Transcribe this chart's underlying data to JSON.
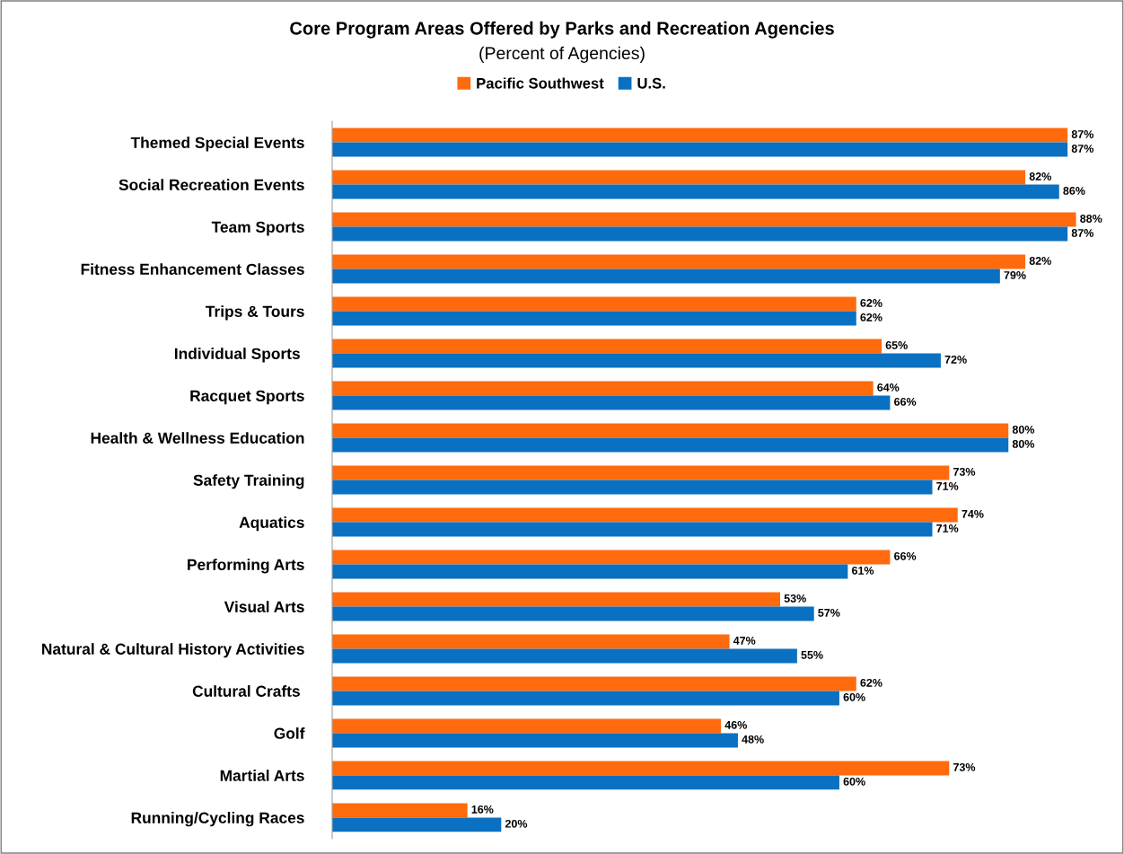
{
  "chart_data": {
    "type": "bar",
    "orientation": "horizontal",
    "title": "Core Program Areas Offered by Parks and Recreation Agencies",
    "subtitle": "(Percent of Agencies)",
    "categories": [
      "Themed Special Events",
      "Social Recreation Events",
      "Team Sports",
      "Fitness Enhancement Classes",
      "Trips & Tours",
      "Individual Sports ",
      "Racquet Sports",
      "Health & Wellness Education",
      "Safety Training",
      "Aquatics",
      "Performing Arts",
      "Visual Arts",
      "Natural & Cultural History Activities",
      "Cultural Crafts ",
      "Golf",
      "Martial Arts",
      "Running/Cycling Races"
    ],
    "series": [
      {
        "name": "Pacific Southwest",
        "color": "#ff6a0d",
        "values": [
          87,
          82,
          88,
          82,
          62,
          65,
          64,
          80,
          73,
          74,
          66,
          53,
          47,
          62,
          46,
          73,
          16
        ],
        "value_labels": [
          "87%",
          "82%",
          "88%",
          "82%",
          "62%",
          "65%",
          "64%",
          "80%",
          "73%",
          "74%",
          "66%",
          "53%",
          "47%",
          "62%",
          "46%",
          "73%",
          "16%"
        ]
      },
      {
        "name": "U.S.",
        "color": "#0a70c2",
        "values": [
          87,
          86,
          87,
          79,
          62,
          72,
          66,
          80,
          71,
          71,
          61,
          57,
          55,
          60,
          48,
          60,
          20
        ],
        "value_labels": [
          "87%",
          "86%",
          "87%",
          "79%",
          "62%",
          "72%",
          "66%",
          "80%",
          "71%",
          "71%",
          "61%",
          "57%",
          "55%",
          "60%",
          "48%",
          "60%",
          "20%"
        ]
      }
    ],
    "tick_labels": "y",
    "grid": false,
    "legend": "top"
  }
}
